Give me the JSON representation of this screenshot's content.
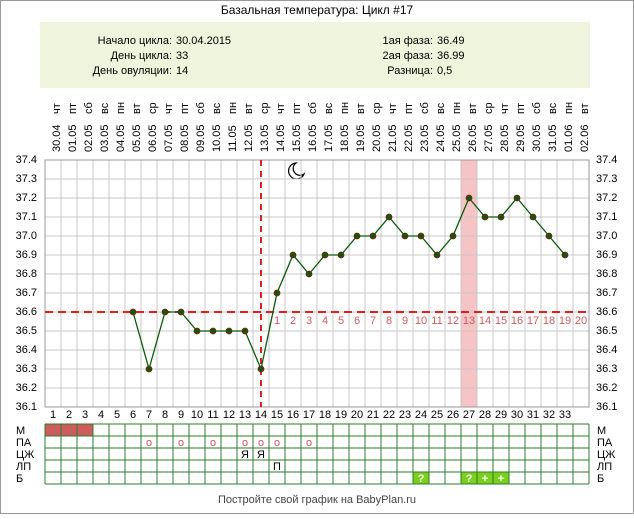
{
  "chart_data": {
    "type": "line",
    "title": "Базальная температура: Цикл #17",
    "info_left": [
      {
        "label": "Начало цикла:",
        "value": "30.04.2015"
      },
      {
        "label": "День цикла:",
        "value": 33
      },
      {
        "label": "День овуляции:",
        "value": 14
      }
    ],
    "info_right": [
      {
        "label": "1ая фаза:",
        "value": 36.49
      },
      {
        "label": "2ая фаза:",
        "value": 36.99
      },
      {
        "label": "Разница:",
        "value": "0,5"
      }
    ],
    "categories": [
      "30.04",
      "01.05",
      "02.05",
      "03.05",
      "04.05",
      "05.05",
      "06.05",
      "07.05",
      "08.05",
      "09.05",
      "10.05",
      "11.05",
      "12.05",
      "13.05",
      "14.05",
      "15.05",
      "16.05",
      "17.05",
      "18.05",
      "19.05",
      "20.05",
      "21.05",
      "22.05",
      "23.05",
      "24.05",
      "25.05",
      "26.05",
      "27.05",
      "28.05",
      "29.05",
      "30.05",
      "31.05",
      "01.06",
      "02.06"
    ],
    "weekdays": [
      "чт",
      "пт",
      "сб",
      "вс",
      "пн",
      "вт",
      "ср",
      "чт",
      "пт",
      "сб",
      "вс",
      "пн",
      "вт",
      "ср",
      "чт",
      "пт",
      "сб",
      "вс",
      "пн",
      "вт",
      "ср",
      "чт",
      "пт",
      "сб",
      "вс",
      "пн",
      "вт",
      "ср",
      "чт",
      "пт",
      "сб",
      "вс",
      "пн",
      "вт"
    ],
    "days": [
      1,
      2,
      3,
      4,
      5,
      6,
      7,
      8,
      9,
      10,
      11,
      12,
      13,
      14,
      15,
      16,
      17,
      18,
      19,
      20,
      21,
      22,
      23,
      24,
      25,
      26,
      27,
      28,
      29,
      30,
      31,
      32,
      33,
      null
    ],
    "values": [
      null,
      null,
      null,
      null,
      null,
      36.6,
      36.3,
      36.6,
      36.6,
      36.5,
      36.5,
      36.5,
      36.5,
      36.3,
      36.7,
      36.9,
      36.8,
      36.9,
      36.9,
      37.0,
      37.0,
      37.1,
      37.0,
      37.0,
      36.9,
      37.0,
      37.2,
      37.1,
      37.1,
      37.2,
      37.1,
      37.0,
      36.9,
      null
    ],
    "color": "#0b5a0b",
    "marker_color": "#8b1a1a",
    "coverline": 36.6,
    "highlight_day": 27,
    "phase2_days": [
      1,
      2,
      3,
      4,
      5,
      6,
      7,
      8,
      9,
      10,
      11,
      12,
      13,
      14,
      15,
      16,
      17,
      18,
      19,
      20
    ],
    "ylim": [
      36.1,
      37.4
    ],
    "yticks": [
      36.1,
      36.2,
      36.3,
      36.4,
      36.5,
      36.6,
      36.7,
      36.8,
      36.9,
      {
        "value": 37,
        "label": "37.0"
      },
      37.1,
      37.2,
      37.3,
      37.4
    ],
    "grid": true,
    "rows": [
      {
        "label": "М",
        "fill": "#cd5c5c",
        "entries": [
          {
            "day": 1
          },
          {
            "day": 2
          },
          {
            "day": 3
          }
        ]
      },
      {
        "label": "ПА",
        "entries": [
          {
            "day": 7,
            "text": "o"
          },
          {
            "day": 9,
            "text": "o"
          },
          {
            "day": 11,
            "text": "o"
          },
          {
            "day": 13,
            "text": "o"
          },
          {
            "day": 14,
            "text": "o"
          },
          {
            "day": 15,
            "text": "o"
          },
          {
            "day": 17,
            "text": "o"
          }
        ]
      },
      {
        "label": "ЦЖ",
        "entries": [
          {
            "day": 13,
            "text": "Я"
          },
          {
            "day": 14,
            "text": "Я"
          }
        ]
      },
      {
        "label": "ЛП",
        "entries": [
          {
            "day": 15,
            "text": "П"
          }
        ]
      },
      {
        "label": "Б",
        "fill": "#7ccf1c",
        "entries": [
          {
            "day": 24,
            "text": "?"
          },
          {
            "day": 27,
            "text": "?"
          },
          {
            "day": 28,
            "text": "+"
          },
          {
            "day": 29,
            "text": "+"
          }
        ]
      }
    ],
    "footer": "Постройте свой график на BabyPlan.ru"
  }
}
